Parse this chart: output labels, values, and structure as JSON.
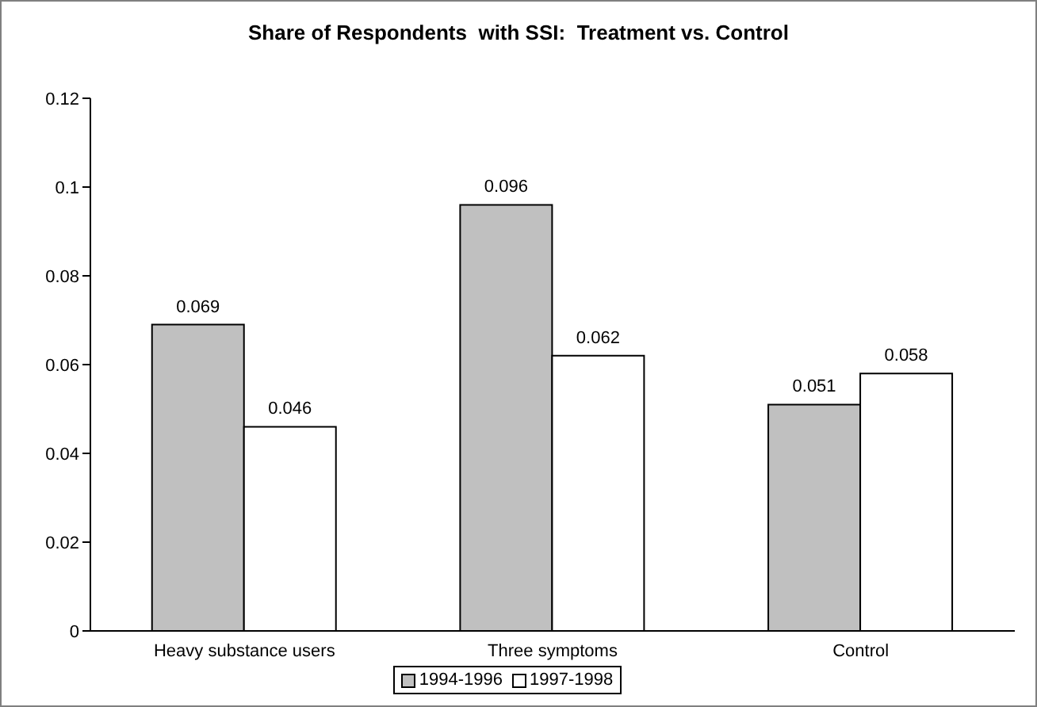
{
  "chart_data": {
    "type": "bar",
    "title": "Share of Respondents  with SSI:  Treatment vs. Control",
    "categories": [
      "Heavy substance users",
      "Three symptoms",
      "Control"
    ],
    "series": [
      {
        "name": "1994-1996",
        "color": "#c0c0c0",
        "values": [
          0.069,
          0.096,
          0.051
        ]
      },
      {
        "name": "1997-1998",
        "color": "#ffffff",
        "values": [
          0.046,
          0.062,
          0.058
        ]
      }
    ],
    "ylim": [
      0,
      0.12
    ],
    "yticks": [
      0,
      0.02,
      0.04,
      0.06,
      0.08,
      0.1,
      0.12
    ],
    "grid": false,
    "legend": "bottom",
    "data_labels": true
  }
}
